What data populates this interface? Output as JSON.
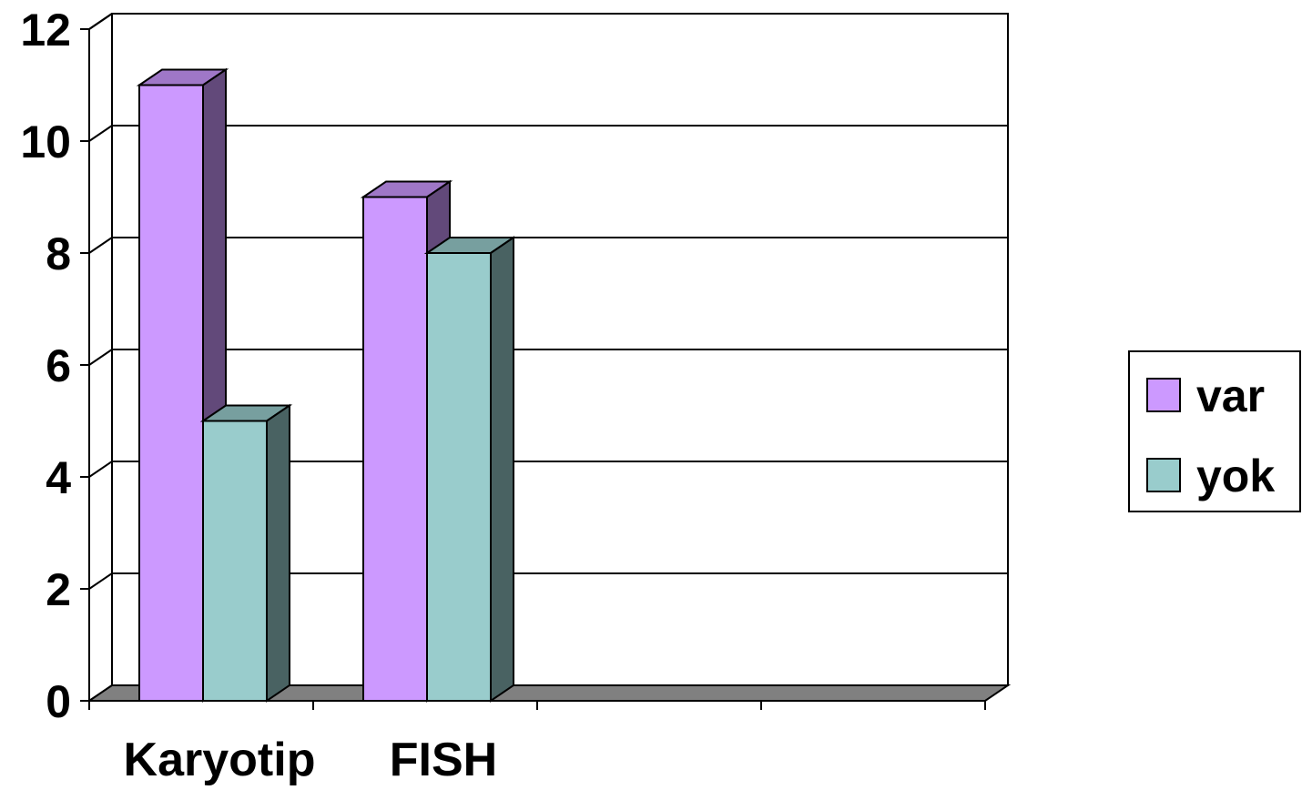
{
  "chart_data": {
    "type": "bar",
    "categories": [
      "Karyotip",
      "FISH"
    ],
    "series": [
      {
        "name": "var",
        "values": [
          11,
          9
        ],
        "color": "#cc99ff"
      },
      {
        "name": "yok",
        "values": [
          5,
          8
        ],
        "color": "#99cccc"
      }
    ],
    "ylim": [
      0,
      12
    ],
    "yticks": [
      "0",
      "2",
      "4",
      "6",
      "8",
      "10",
      "12"
    ],
    "grid": true,
    "legend": "right",
    "style": "3d-clustered-column",
    "xlabel": "",
    "ylabel": "",
    "title": ""
  }
}
